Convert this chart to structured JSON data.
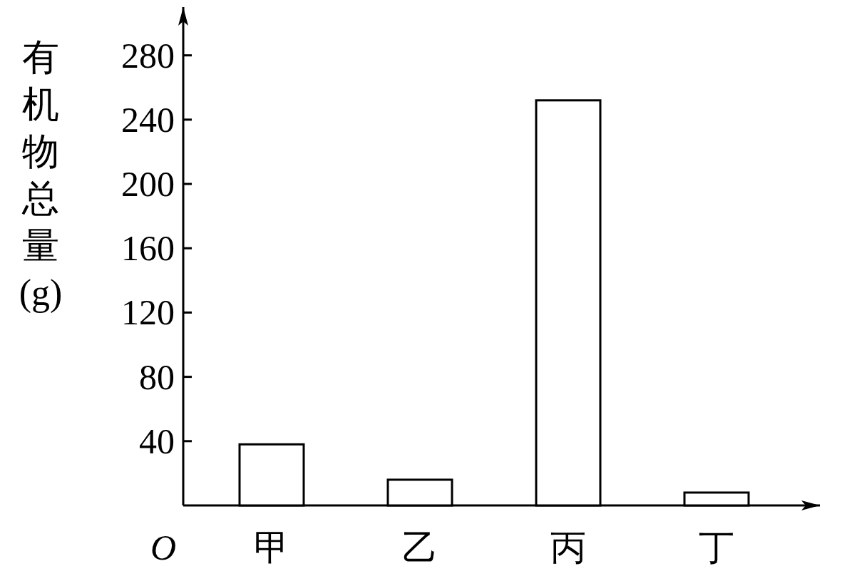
{
  "chart_data": {
    "type": "bar",
    "ylabel": "有机物总量(g)",
    "categories": [
      "甲",
      "乙",
      "丙",
      "丁"
    ],
    "values": [
      38,
      16,
      252,
      8
    ],
    "ylim": [
      0,
      310
    ],
    "yticks": [
      40,
      80,
      120,
      160,
      200,
      240,
      280
    ],
    "annotations": [
      "O"
    ]
  }
}
